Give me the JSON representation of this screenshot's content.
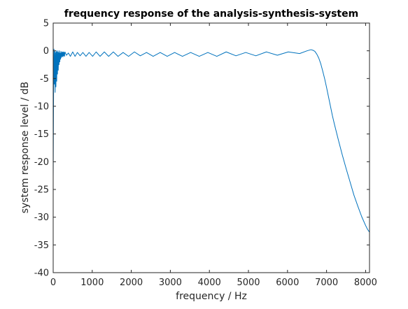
{
  "chart_data": {
    "type": "line",
    "title": "frequency response of the analysis-synthesis-system",
    "xlabel": "frequency / Hz",
    "ylabel": "system response level / dB",
    "xlim": [
      0,
      8100
    ],
    "ylim": [
      -40,
      5
    ],
    "xticks": [
      "0",
      "1000",
      "2000",
      "3000",
      "4000",
      "5000",
      "6000",
      "7000",
      "8000"
    ],
    "xtick_values": [
      0,
      1000,
      2000,
      3000,
      4000,
      5000,
      6000,
      7000,
      8000
    ],
    "yticks": [
      "5",
      "0",
      "-5",
      "-10",
      "-15",
      "-20",
      "-25",
      "-30",
      "-35",
      "-40"
    ],
    "ytick_values": [
      5,
      0,
      -5,
      -10,
      -15,
      -20,
      -25,
      -30,
      -35,
      -40
    ],
    "grid": false,
    "line_color": "#0072bd",
    "series": [
      {
        "x": [
          0,
          10,
          20,
          30,
          40,
          50,
          60,
          70,
          80,
          90,
          100,
          110,
          120,
          130,
          140,
          150,
          160,
          170,
          180,
          190,
          200,
          210,
          220,
          230,
          240,
          250,
          260,
          270,
          280,
          290,
          300,
          340,
          390,
          440,
          500,
          560,
          620,
          690,
          760,
          840,
          920,
          1010,
          1100,
          1200,
          1310,
          1420,
          1540,
          1660,
          1790,
          1930,
          2080,
          2230,
          2390,
          2560,
          2740,
          2920,
          3110,
          3310,
          3520,
          3740,
          3960,
          4190,
          4430,
          4680,
          4930,
          5190,
          5460,
          5740,
          6020,
          6310,
          6500,
          6600,
          6650,
          6700,
          6750,
          6800,
          6850,
          6900,
          6950,
          7000,
          7050,
          7100,
          7150,
          7200,
          7300,
          7400,
          7500,
          7600,
          7700,
          7800,
          7900,
          8000,
          8050,
          8100
        ],
        "y": [
          -23,
          -8,
          0.3,
          -6,
          -0.1,
          -7.5,
          -0.3,
          -6.5,
          0,
          -5.5,
          -0.2,
          -4.2,
          0,
          -3.5,
          -0.3,
          -2.5,
          0,
          -2.0,
          -0.4,
          -1.5,
          -0.1,
          -1.2,
          -0.3,
          -1.0,
          -0.2,
          -1.1,
          -0.2,
          -0.9,
          -0.3,
          -1.0,
          -0.2,
          -0.8,
          -0.4,
          -1.0,
          -0.2,
          -1.0,
          -0.3,
          -0.9,
          -0.3,
          -1.0,
          -0.3,
          -1.0,
          -0.2,
          -1.0,
          -0.2,
          -1.0,
          -0.2,
          -1.0,
          -0.3,
          -1.0,
          -0.2,
          -0.9,
          -0.3,
          -1.0,
          -0.3,
          -1.0,
          -0.3,
          -1.0,
          -0.3,
          -1.0,
          -0.3,
          -1.0,
          -0.2,
          -0.9,
          -0.3,
          -0.9,
          -0.2,
          -0.8,
          -0.2,
          -0.5,
          0.0,
          0.2,
          0.1,
          -0.1,
          -0.6,
          -1.3,
          -2.3,
          -3.6,
          -5.0,
          -6.6,
          -8.3,
          -10.0,
          -11.7,
          -13.2,
          -16.0,
          -18.7,
          -21.2,
          -23.6,
          -26.0,
          -28.0,
          -29.9,
          -31.5,
          -32.2,
          -32.7
        ]
      }
    ]
  }
}
